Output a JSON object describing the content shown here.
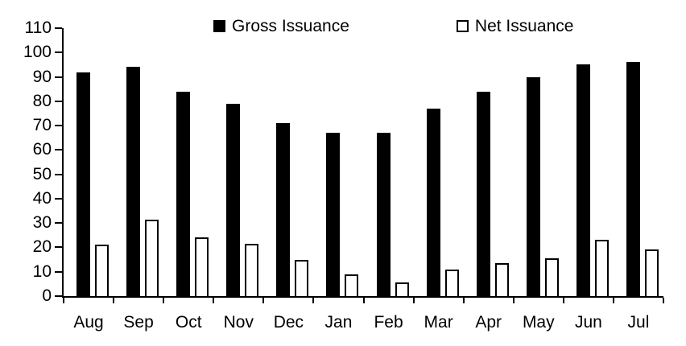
{
  "legend": [
    {
      "label": "Gross Issuance",
      "swatch": "filled-black-square"
    },
    {
      "label": "Net Issuance",
      "swatch": "outlined-white-square"
    }
  ],
  "colors": {
    "gross_fill": "#000000",
    "net_fill": "#ffffff",
    "net_stroke": "#000000",
    "axis": "#000000",
    "background": "#ffffff",
    "text": "#000000"
  },
  "chart_data": {
    "type": "bar",
    "title": "",
    "xlabel": "",
    "ylabel": "",
    "categories": [
      "Aug",
      "Sep",
      "Oct",
      "Nov",
      "Dec",
      "Jan",
      "Feb",
      "Mar",
      "Apr",
      "May",
      "Jun",
      "Jul"
    ],
    "series": [
      {
        "name": "Gross Issuance",
        "values": [
          92,
          94,
          84,
          79,
          71,
          67,
          67,
          77,
          84,
          90,
          95,
          96
        ]
      },
      {
        "name": "Net Issuance",
        "values": [
          21,
          31.5,
          24,
          21.5,
          15,
          9,
          5.5,
          11,
          13.5,
          15.5,
          23,
          19
        ]
      }
    ],
    "ylim": [
      0,
      110
    ],
    "yticks": [
      0,
      10,
      20,
      30,
      40,
      50,
      60,
      70,
      80,
      90,
      100,
      110
    ],
    "grid": false,
    "legend_position": "top-center"
  }
}
